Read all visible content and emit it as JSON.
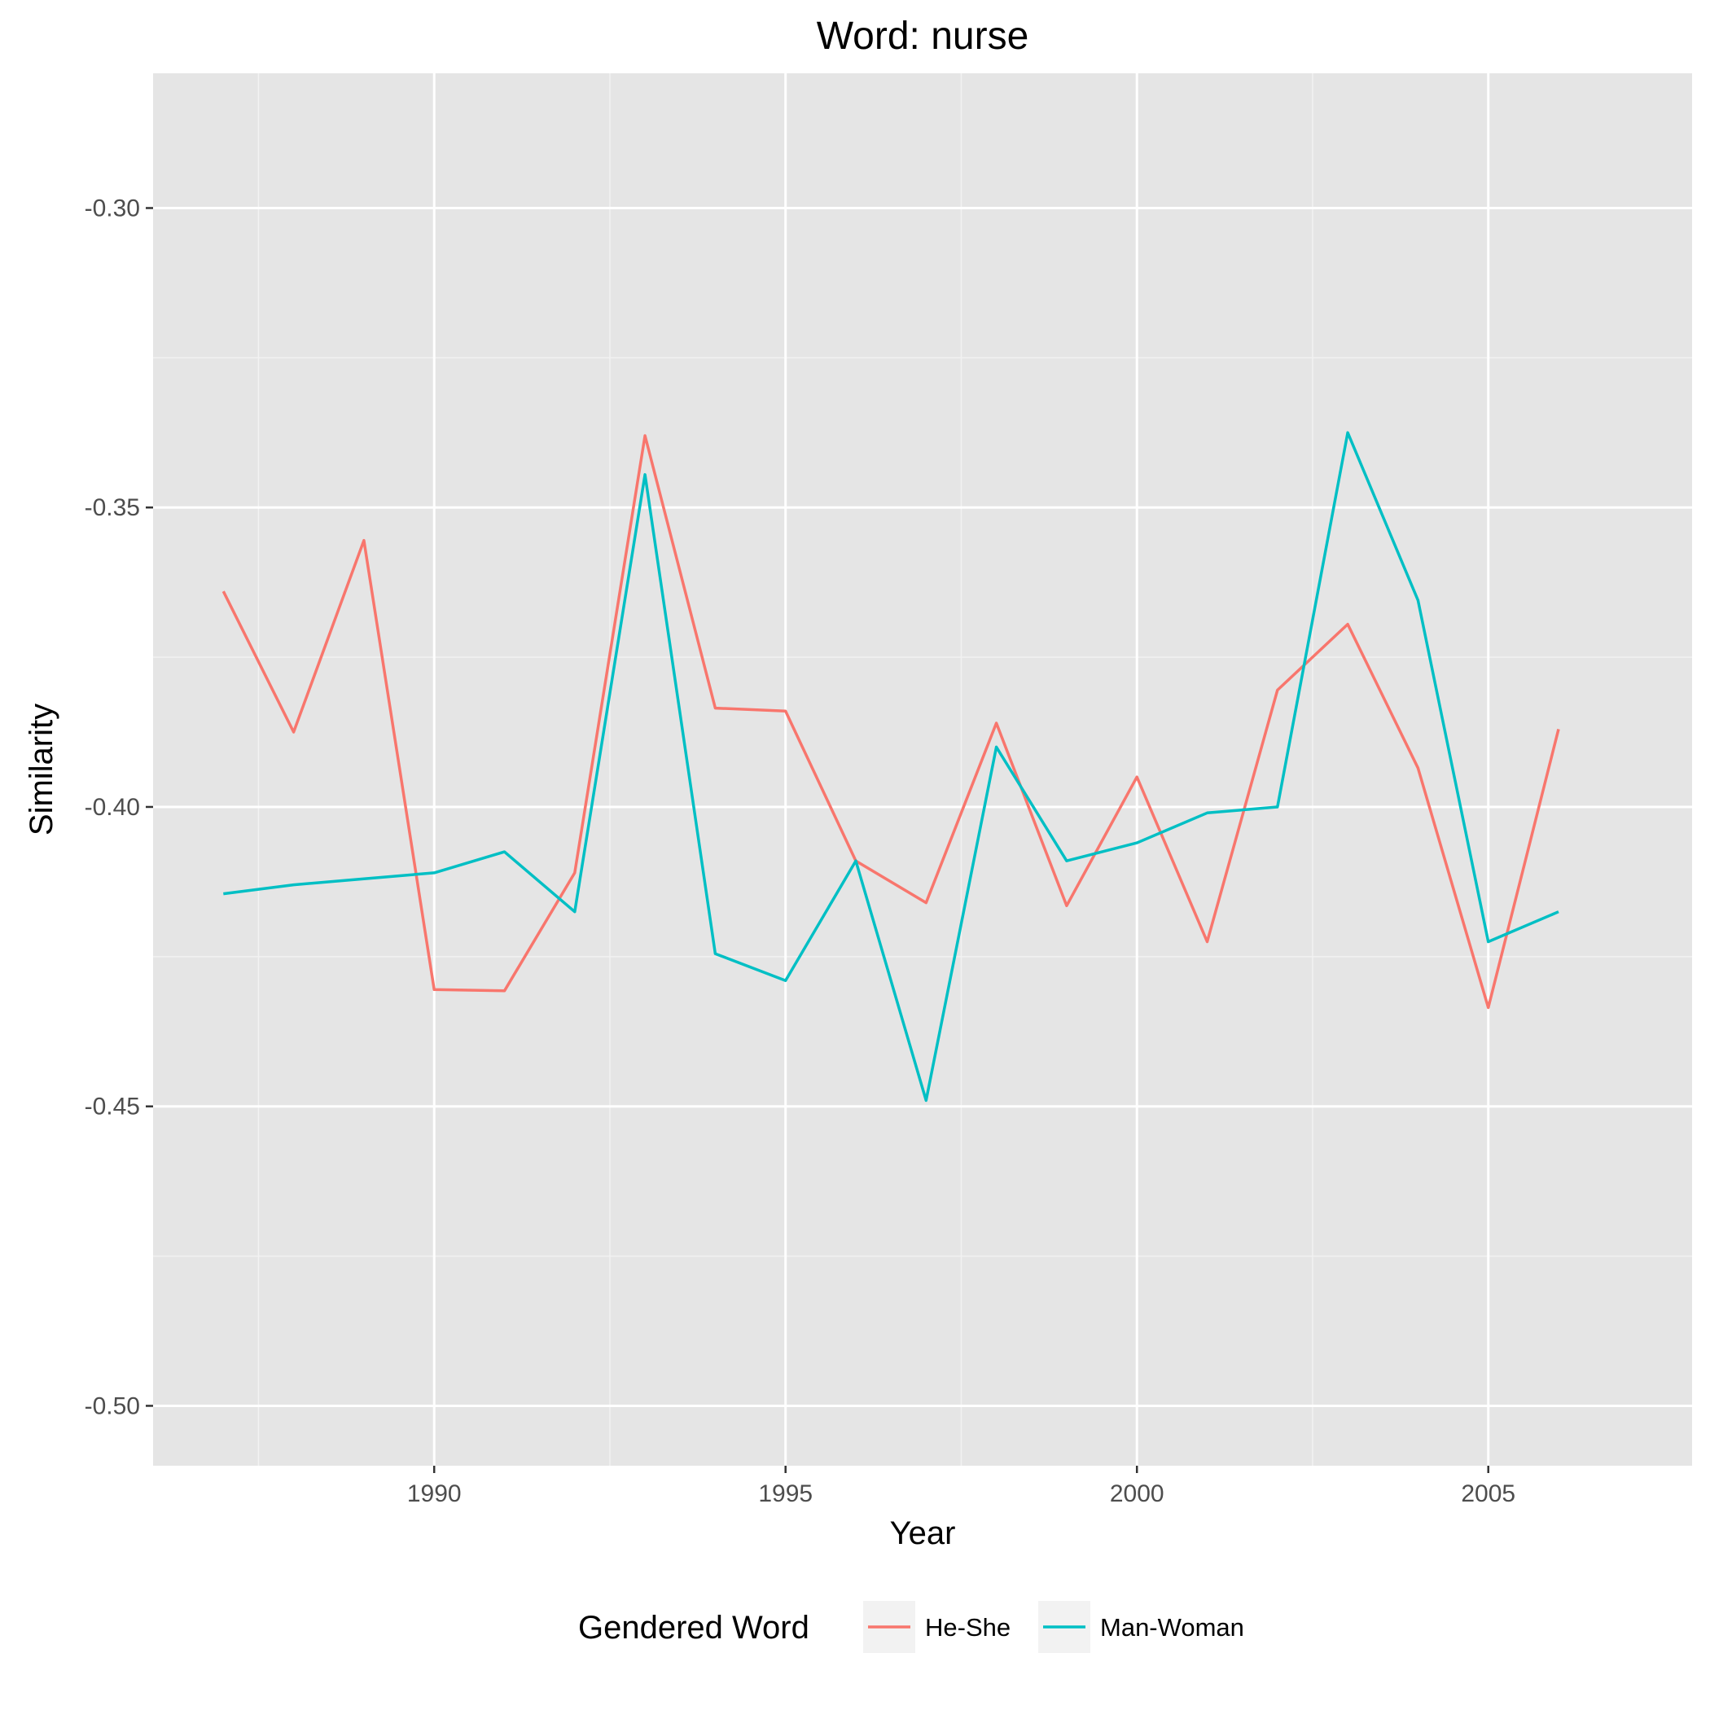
{
  "chart_data": {
    "type": "line",
    "title": "Word: nurse",
    "xlabel": "Year",
    "ylabel": "Similarity",
    "xlim": [
      1986,
      2007.9
    ],
    "ylim": [
      -0.51,
      -0.2775
    ],
    "x_ticks": [
      1990,
      1995,
      2000,
      2005
    ],
    "x_tick_labels": [
      "1990",
      "1995",
      "2000",
      "2005"
    ],
    "y_ticks": [
      -0.3,
      -0.35,
      -0.4,
      -0.45,
      -0.5
    ],
    "y_tick_labels": [
      "-0.30",
      "-0.35",
      "-0.40",
      "-0.45",
      "-0.50"
    ],
    "grid": true,
    "legend": {
      "title": "Gendered Word",
      "placement": "bottom"
    },
    "x": [
      1987,
      1988,
      1989,
      1990,
      1991,
      1992,
      1993,
      1994,
      1995,
      1996,
      1997,
      1998,
      1999,
      2000,
      2001,
      2002,
      2003,
      2004,
      2005,
      2006
    ],
    "series": [
      {
        "name": "He-She",
        "color": "#F8766D",
        "values": [
          -0.364,
          -0.3875,
          -0.3555,
          -0.4305,
          -0.4307,
          -0.411,
          -0.338,
          -0.3835,
          -0.384,
          -0.409,
          -0.416,
          -0.386,
          -0.4165,
          -0.395,
          -0.4225,
          -0.3805,
          -0.3695,
          -0.3935,
          -0.4335,
          -0.387
        ]
      },
      {
        "name": "Man-Woman",
        "color": "#00BFC4",
        "values": [
          -0.4145,
          -0.413,
          -0.412,
          -0.411,
          -0.4075,
          -0.4175,
          -0.3445,
          -0.4245,
          -0.429,
          -0.409,
          -0.449,
          -0.39,
          -0.409,
          -0.406,
          -0.401,
          -0.4,
          -0.3375,
          -0.3655,
          -0.4225,
          -0.4175
        ]
      }
    ]
  }
}
